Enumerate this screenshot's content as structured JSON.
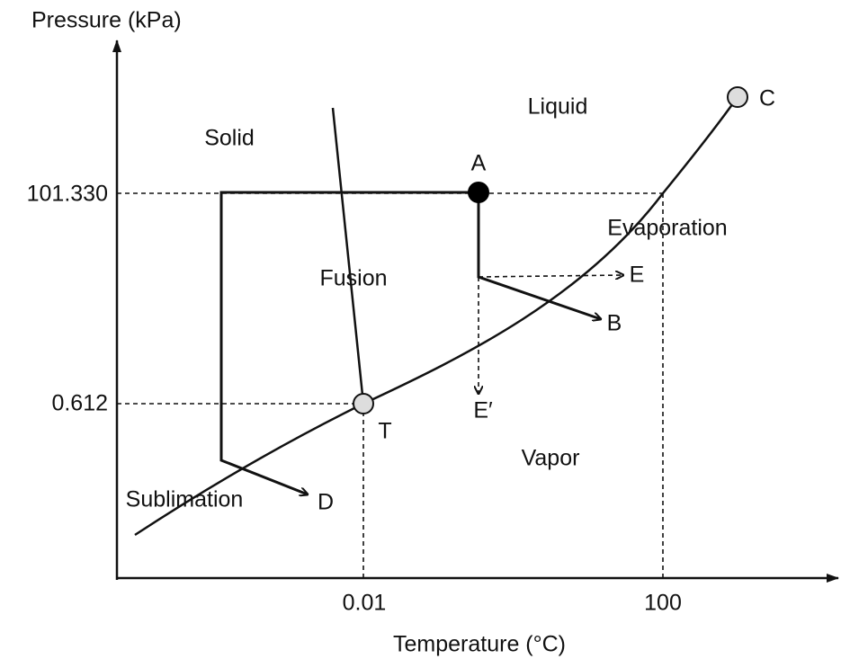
{
  "axes": {
    "y_label": "Pressure (kPa)",
    "x_label": "Temperature (°C)",
    "y_ticks": [
      "101.330",
      "0.612"
    ],
    "x_ticks": [
      "0.01",
      "100"
    ]
  },
  "regions": {
    "solid": "Solid",
    "liquid": "Liquid",
    "vapor": "Vapor"
  },
  "lines": {
    "fusion": "Fusion",
    "evaporation": "Evaporation",
    "sublimation": "Sublimation"
  },
  "points": {
    "a": "A",
    "b": "B",
    "c": "C",
    "d": "D",
    "e": "E",
    "e_prime": "E′",
    "t": "T"
  }
}
